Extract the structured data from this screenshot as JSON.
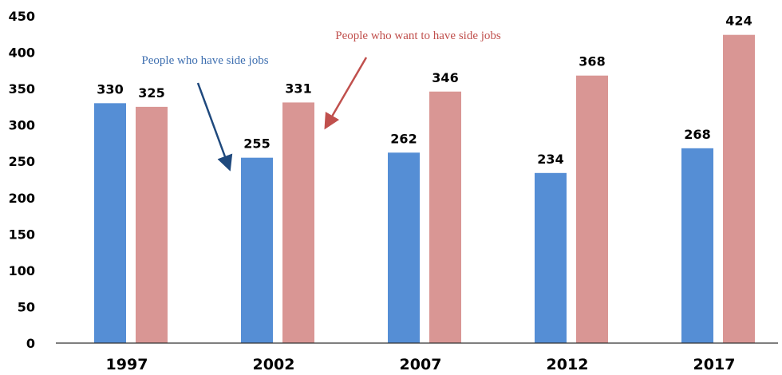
{
  "chart_data": {
    "type": "bar",
    "categories": [
      "1997",
      "2002",
      "2007",
      "2012",
      "2017"
    ],
    "series": [
      {
        "name": "People who have side jobs",
        "values": [
          330,
          255,
          262,
          234,
          268
        ],
        "color": "#558ed5"
      },
      {
        "name": "People who want to have side jobs",
        "values": [
          325,
          331,
          346,
          368,
          424
        ],
        "color": "#d99694"
      }
    ],
    "ylim": [
      0,
      450
    ],
    "yticks": [
      0,
      50,
      100,
      150,
      200,
      250,
      300,
      350,
      400,
      450
    ],
    "title": "",
    "xlabel": "",
    "ylabel": "",
    "grid": false,
    "annotations": [
      {
        "text": "People who have side jobs",
        "color": "#3e6fb0",
        "series": 0,
        "category": "2002"
      },
      {
        "text": "People who want to have side jobs",
        "color": "#c0504d",
        "series": 1,
        "category": "2002"
      }
    ]
  }
}
